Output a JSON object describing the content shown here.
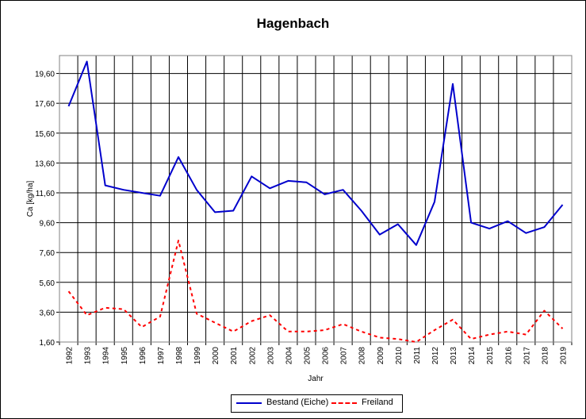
{
  "chart_data": {
    "type": "line",
    "title": "Hagenbach",
    "xlabel": "Jahr",
    "ylabel": "Ca [kg/ha]",
    "ylim": [
      1.6,
      20.8
    ],
    "ytick_labels": [
      "1,60",
      "3,60",
      "5,60",
      "7,60",
      "9,60",
      "11,60",
      "13,60",
      "15,60",
      "17,60",
      "19,60"
    ],
    "categories": [
      "1992",
      "1993",
      "1994",
      "1995",
      "1996",
      "1997",
      "1998",
      "1999",
      "2000",
      "2001",
      "2002",
      "2003",
      "2004",
      "2005",
      "2006",
      "2007",
      "2008",
      "2009",
      "2010",
      "2011",
      "2012",
      "2013",
      "2014",
      "2015",
      "2016",
      "2017",
      "2018",
      "2019"
    ],
    "grid": true,
    "legend_position": "bottom",
    "series": [
      {
        "name": "Bestand (Eiche)",
        "color": "#0000cc",
        "style": "solid",
        "values": [
          17.4,
          20.4,
          12.1,
          11.8,
          11.6,
          11.4,
          14.0,
          11.8,
          10.3,
          10.4,
          12.7,
          11.9,
          12.4,
          12.3,
          11.5,
          11.8,
          10.4,
          8.8,
          9.5,
          8.1,
          11.0,
          18.9,
          9.6,
          9.2,
          9.7,
          8.9,
          9.3,
          10.8
        ]
      },
      {
        "name": "Freiland",
        "color": "#ff0000",
        "style": "dashed",
        "values": [
          5.0,
          3.4,
          3.9,
          3.8,
          2.6,
          3.3,
          8.4,
          3.5,
          2.9,
          2.3,
          3.0,
          3.4,
          2.3,
          2.3,
          2.4,
          2.8,
          2.3,
          1.9,
          1.8,
          1.6,
          2.4,
          3.1,
          1.8,
          2.1,
          2.3,
          2.1,
          3.7,
          2.5
        ]
      }
    ]
  }
}
